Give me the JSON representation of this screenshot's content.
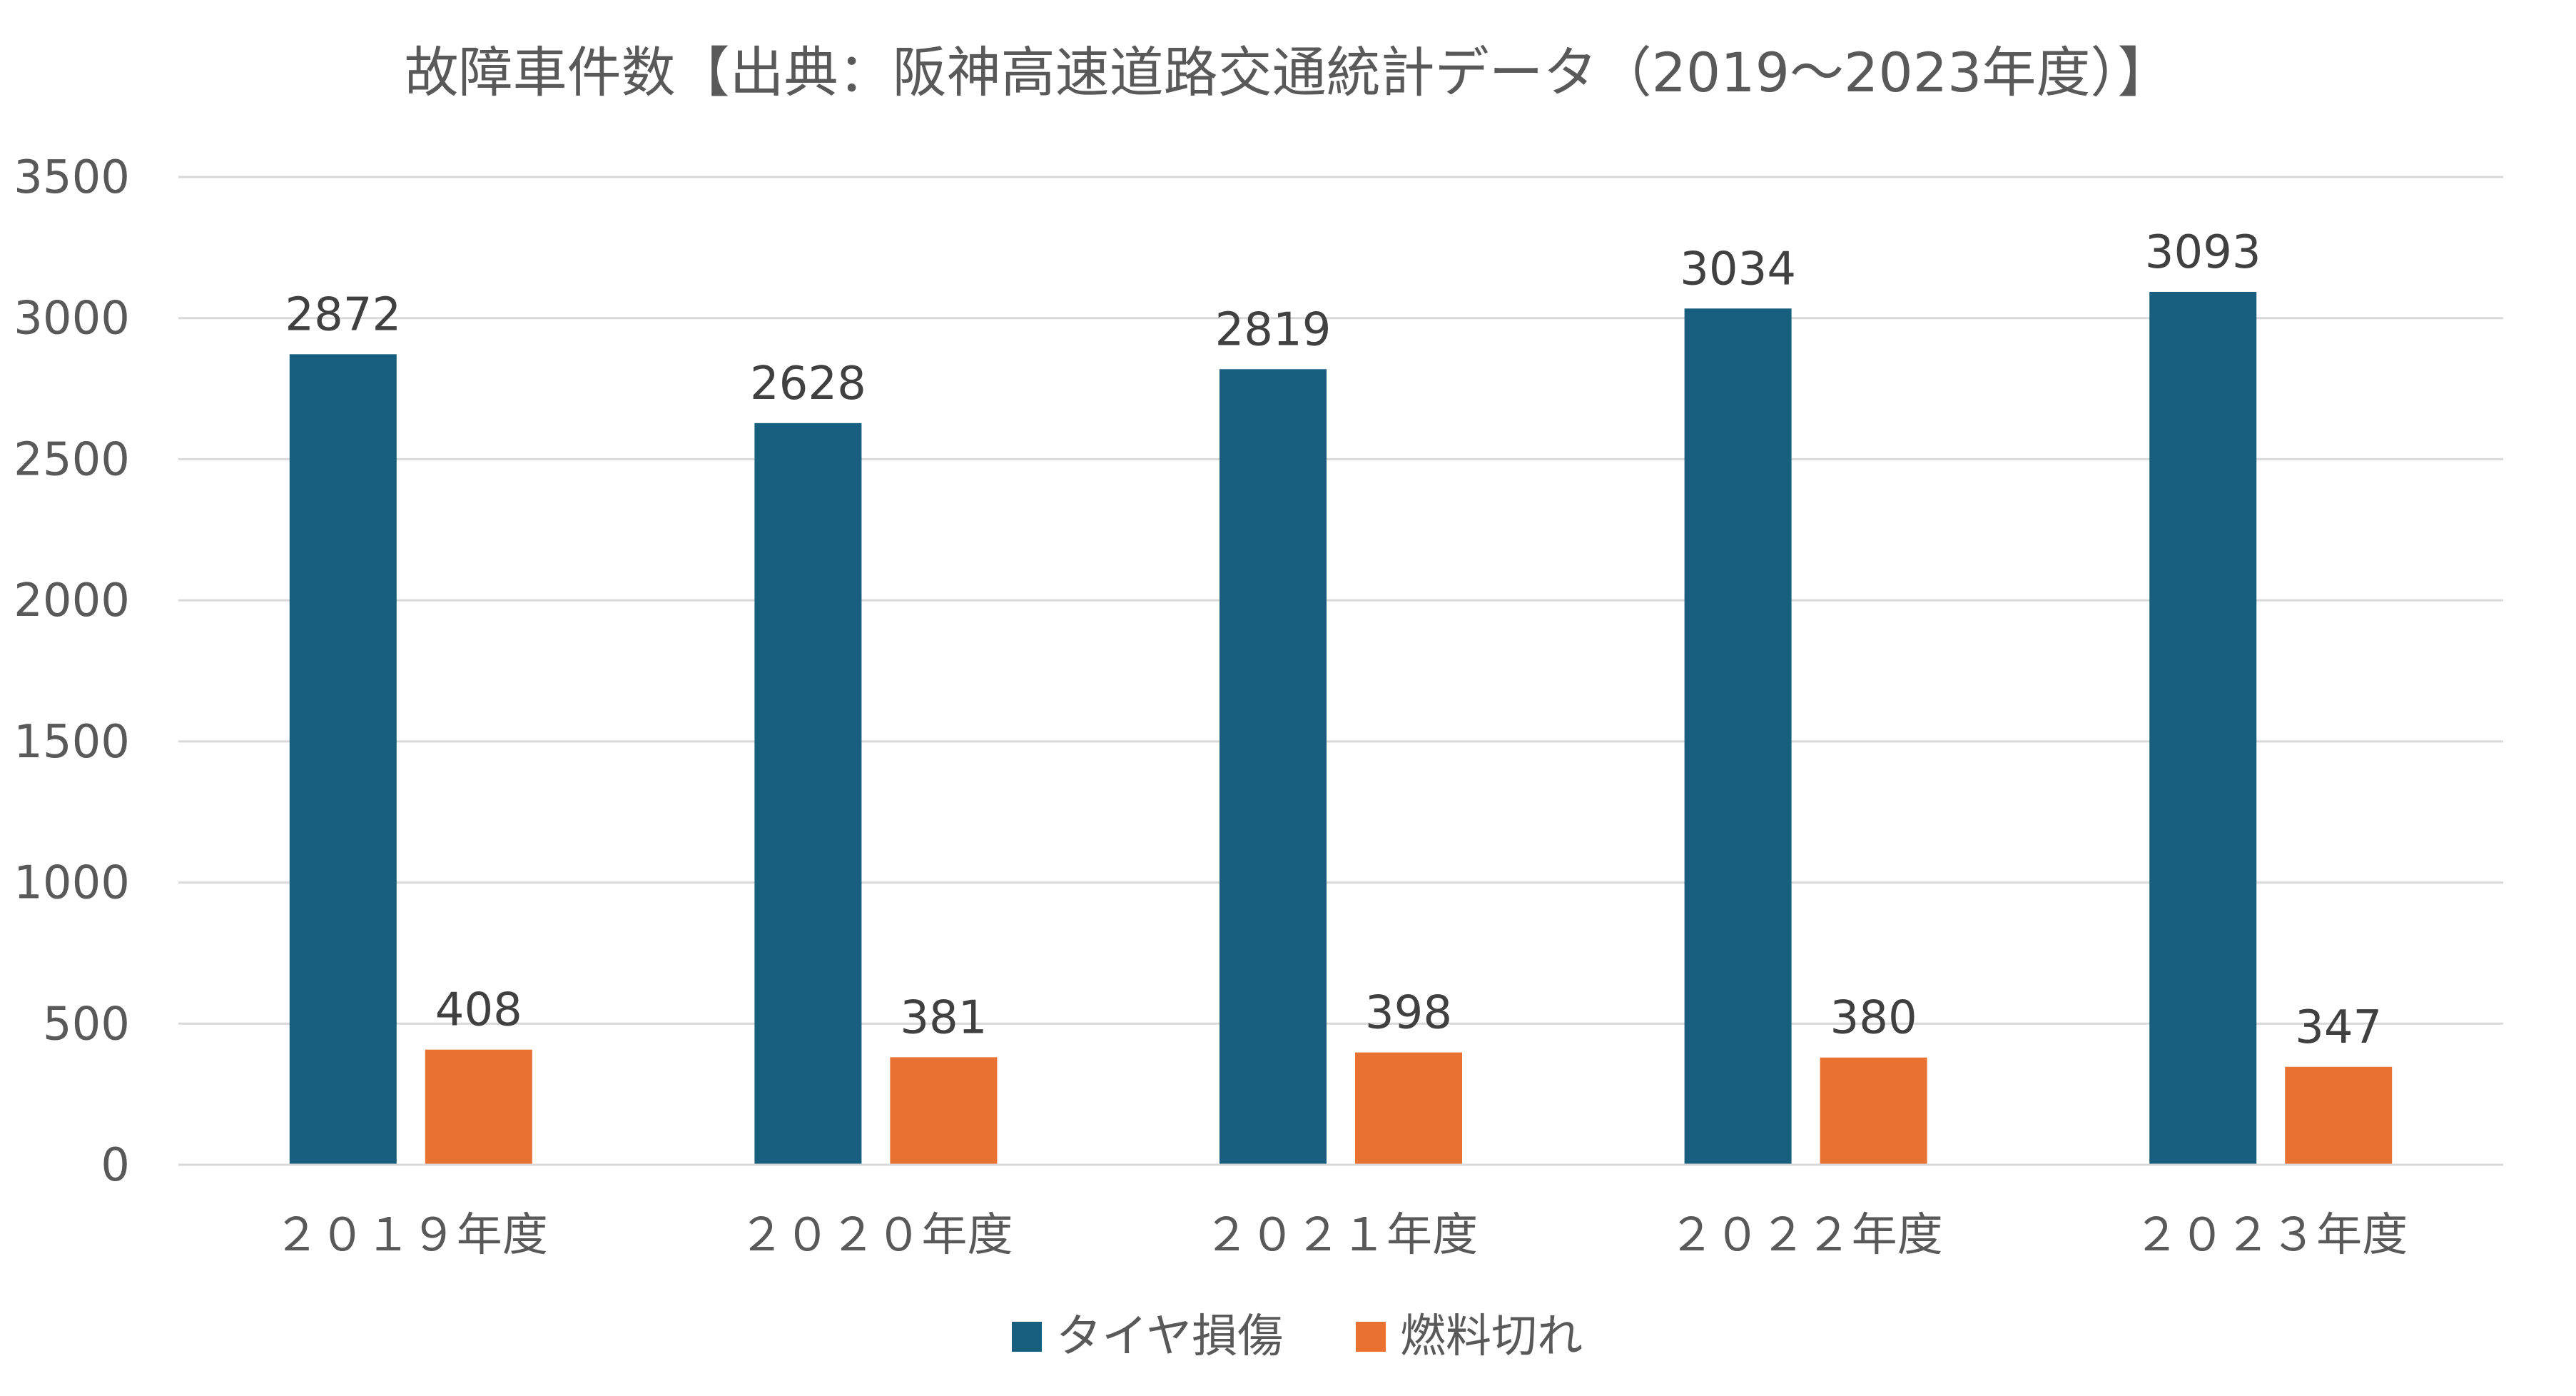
{
  "chart_data": {
    "type": "bar",
    "title": "故障車件数【出典：阪神高速道路交通統計データ（2019～2023年度）】",
    "categories": [
      "２０１９年度",
      "２０２０年度",
      "２０２１年度",
      "２０２２年度",
      "２０２３年度"
    ],
    "series": [
      {
        "name": "タイヤ損傷",
        "color": "#175e7f",
        "values": [
          2872,
          2628,
          2819,
          3034,
          3093
        ]
      },
      {
        "name": "燃料切れ",
        "color": "#e97132",
        "values": [
          408,
          381,
          398,
          380,
          347
        ]
      }
    ],
    "ylim": [
      0,
      3500
    ],
    "yticks": [
      "0",
      "500",
      "1000",
      "1500",
      "2000",
      "2500",
      "3000",
      "3500"
    ],
    "ytick_values": [
      0,
      500,
      1000,
      1500,
      2000,
      2500,
      3000,
      3500
    ],
    "data_labels": true,
    "grid": true,
    "legend_position": "bottom"
  }
}
